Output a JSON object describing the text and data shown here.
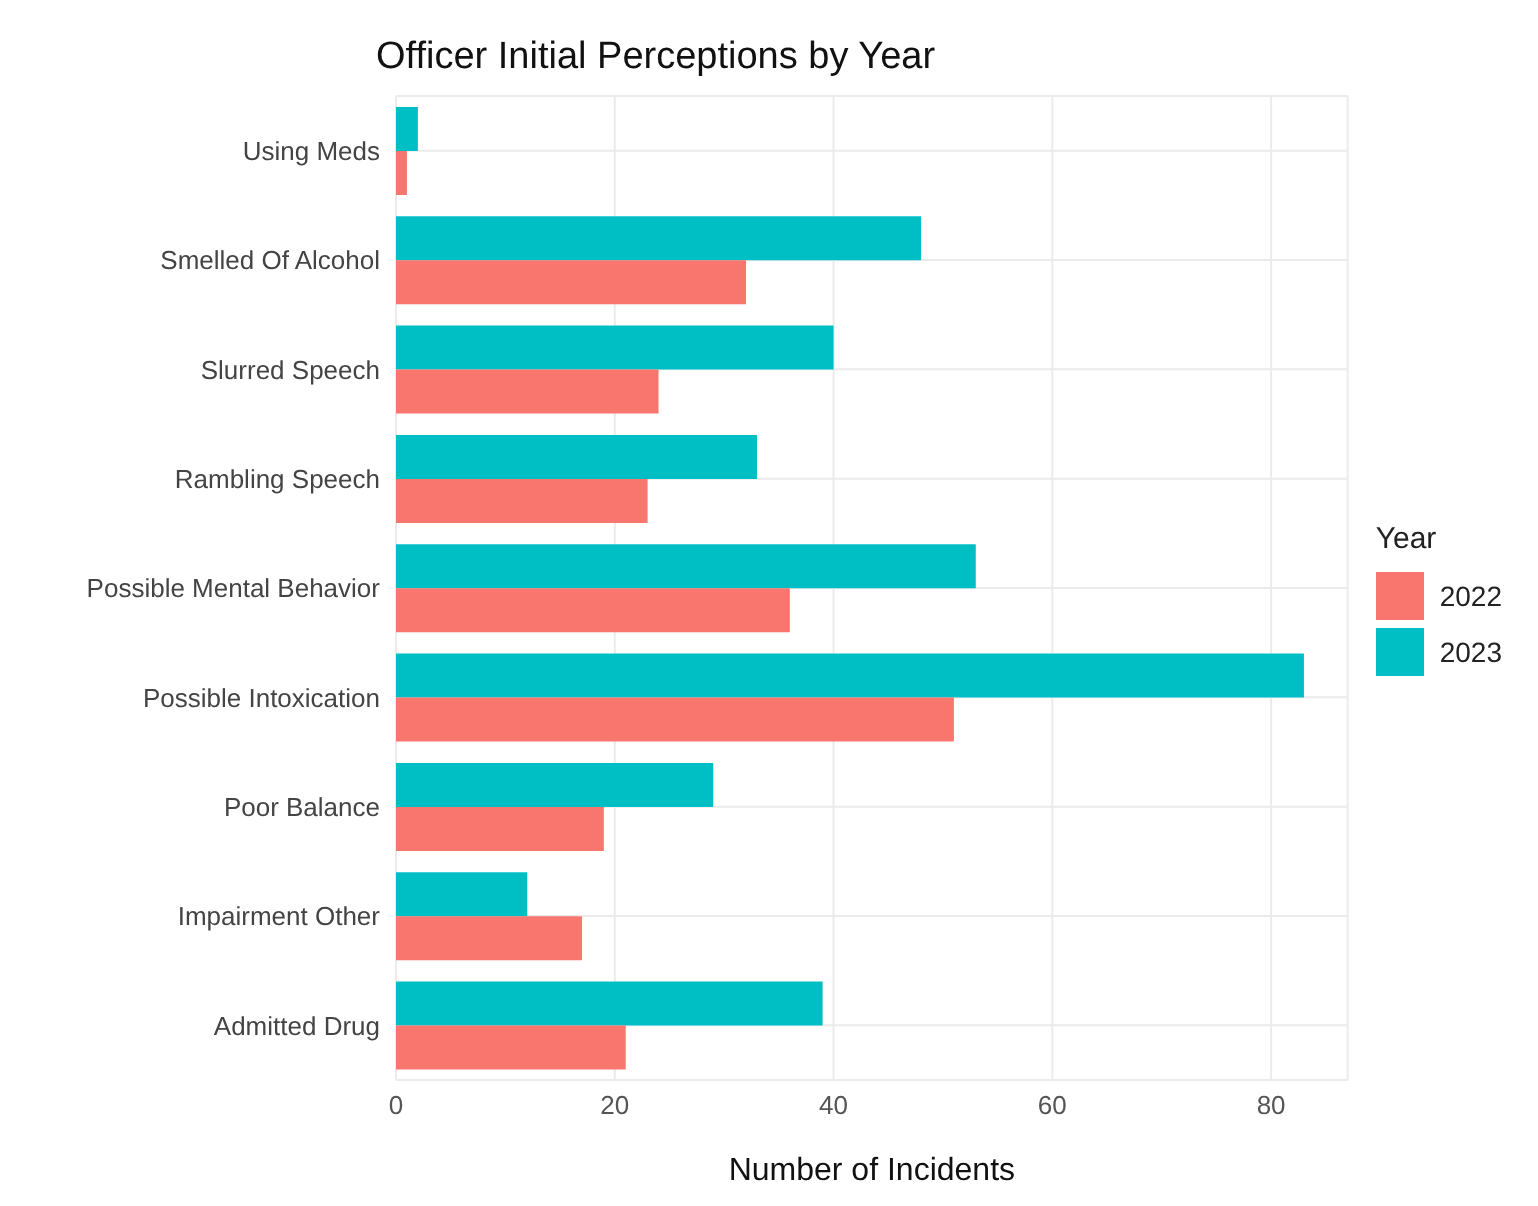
{
  "chart_data": {
    "type": "bar",
    "orientation": "horizontal",
    "title": "Officer Initial Perceptions by Year",
    "xlabel": "Number of Incidents",
    "legend_title": "Year",
    "categories": [
      "Using Meds",
      "Smelled Of Alcohol",
      "Slurred Speech",
      "Rambling Speech",
      "Possible Mental Behavior",
      "Possible Intoxication",
      "Poor Balance",
      "Impairment Other",
      "Admitted Drug"
    ],
    "series": [
      {
        "name": "2022",
        "color": "#f8766d",
        "values": [
          1,
          32,
          24,
          23,
          36,
          51,
          19,
          17,
          21
        ]
      },
      {
        "name": "2023",
        "color": "#00bfc4",
        "values": [
          2,
          48,
          40,
          33,
          53,
          83,
          29,
          12,
          39
        ]
      }
    ],
    "xlim": [
      0,
      87
    ],
    "xticks": [
      0,
      20,
      40,
      60,
      80
    ],
    "grid": true,
    "legend": "right"
  }
}
